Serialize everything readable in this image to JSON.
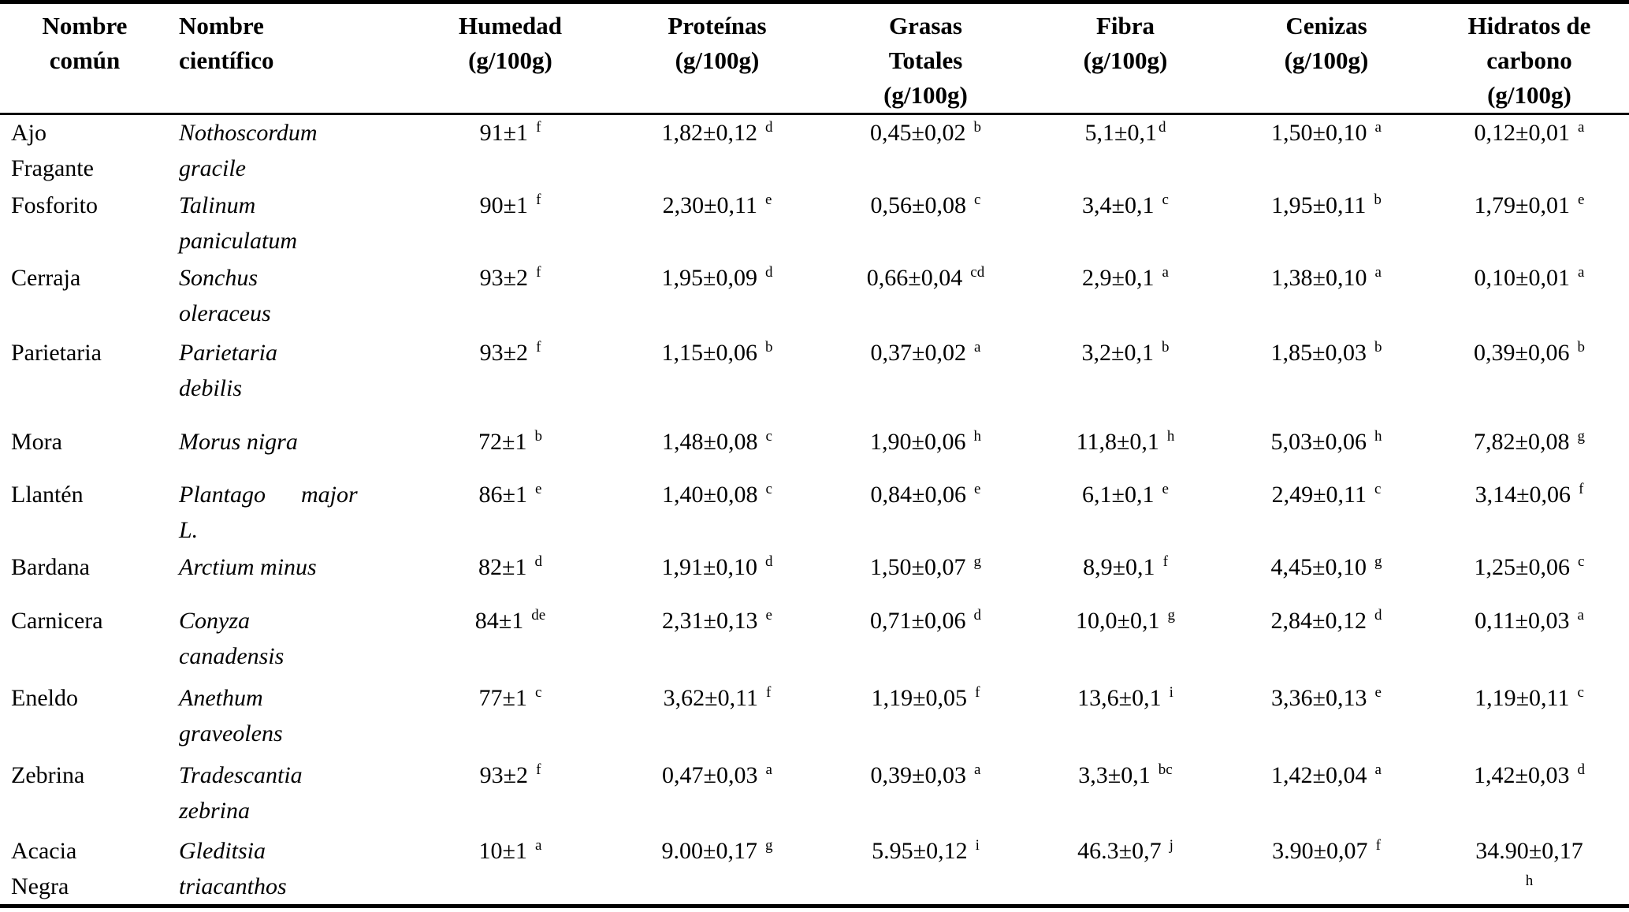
{
  "table": {
    "headers": {
      "comun": "Nombre\ncomún",
      "cientifico": "Nombre\ncientífico",
      "humedad": "Humedad\n(g/100g)",
      "proteinas": "Proteínas\n(g/100g)",
      "grasas": "Grasas\nTotales\n(g/100g)",
      "fibra": "Fibra\n(g/100g)",
      "cenizas": "Cenizas\n(g/100g)",
      "hidratos": "Hidratos de\ncarbono\n(g/100g)"
    },
    "rows": [
      {
        "comun": "Ajo\nFragante",
        "cientifico": "Nothoscordum\ngracile",
        "humedad": {
          "v": "91±1",
          "s": "f"
        },
        "proteinas": {
          "v": "1,82±0,12",
          "s": "d"
        },
        "grasas": {
          "v": "0,45±0,02",
          "s": "b"
        },
        "fibra": {
          "v": "5,1±0,1",
          "s": "d"
        },
        "cenizas": {
          "v": "1,50±0,10",
          "s": "a"
        },
        "hidratos": {
          "v": "0,12±0,01",
          "s": "a"
        }
      },
      {
        "comun": "Fosforito",
        "cientifico": "Talinum\npaniculatum",
        "humedad": {
          "v": "90±1",
          "s": "f"
        },
        "proteinas": {
          "v": "2,30±0,11",
          "s": "e"
        },
        "grasas": {
          "v": "0,56±0,08",
          "s": "c"
        },
        "fibra": {
          "v": "3,4±0,1",
          "s": "c"
        },
        "cenizas": {
          "v": "1,95±0,11",
          "s": "b"
        },
        "hidratos": {
          "v": "1,79±0,01",
          "s": "e"
        }
      },
      {
        "comun": "Cerraja",
        "cientifico": "Sonchus\noleraceus",
        "humedad": {
          "v": "93±2",
          "s": "f"
        },
        "proteinas": {
          "v": "1,95±0,09",
          "s": "d"
        },
        "grasas": {
          "v": "0,66±0,04",
          "s": "cd"
        },
        "fibra": {
          "v": "2,9±0,1",
          "s": "a"
        },
        "cenizas": {
          "v": "1,38±0,10",
          "s": "a"
        },
        "hidratos": {
          "v": "0,10±0,01",
          "s": "a"
        }
      },
      {
        "comun": "Parietaria",
        "cientifico": "Parietaria\ndebilis",
        "humedad": {
          "v": "93±2",
          "s": "f"
        },
        "proteinas": {
          "v": "1,15±0,06",
          "s": "b"
        },
        "grasas": {
          "v": "0,37±0,02",
          "s": "a"
        },
        "fibra": {
          "v": "3,2±0,1",
          "s": "b"
        },
        "cenizas": {
          "v": "1,85±0,03",
          "s": "b"
        },
        "hidratos": {
          "v": "0,39±0,06",
          "s": "b"
        }
      },
      {
        "comun": "Mora",
        "cientifico": "Morus nigra",
        "humedad": {
          "v": "72±1",
          "s": "b"
        },
        "proteinas": {
          "v": "1,48±0,08",
          "s": "c"
        },
        "grasas": {
          "v": "1,90±0,06",
          "s": "h"
        },
        "fibra": {
          "v": "11,8±0,1",
          "s": "h"
        },
        "cenizas": {
          "v": "5,03±0,06",
          "s": "h"
        },
        "hidratos": {
          "v": "7,82±0,08",
          "s": "g"
        }
      },
      {
        "comun": "Llantén",
        "cientifico": "Plantago      major\nL.",
        "humedad": {
          "v": "86±1",
          "s": "e"
        },
        "proteinas": {
          "v": "1,40±0,08",
          "s": "c"
        },
        "grasas": {
          "v": "0,84±0,06",
          "s": "e"
        },
        "fibra": {
          "v": "6,1±0,1",
          "s": "e"
        },
        "cenizas": {
          "v": "2,49±0,11",
          "s": "c"
        },
        "hidratos": {
          "v": "3,14±0,06",
          "s": "f"
        }
      },
      {
        "comun": "Bardana",
        "cientifico": "Arctium minus",
        "humedad": {
          "v": "82±1",
          "s": "d"
        },
        "proteinas": {
          "v": "1,91±0,10",
          "s": "d"
        },
        "grasas": {
          "v": "1,50±0,07",
          "s": "g"
        },
        "fibra": {
          "v": "8,9±0,1",
          "s": "f"
        },
        "cenizas": {
          "v": "4,45±0,10",
          "s": "g"
        },
        "hidratos": {
          "v": "1,25±0,06",
          "s": "c"
        }
      },
      {
        "comun": "Carnicera",
        "cientifico": "Conyza\ncanadensis",
        "humedad": {
          "v": "84±1",
          "s": "de"
        },
        "proteinas": {
          "v": "2,31±0,13",
          "s": "e"
        },
        "grasas": {
          "v": "0,71±0,06",
          "s": "d"
        },
        "fibra": {
          "v": "10,0±0,1",
          "s": "g"
        },
        "cenizas": {
          "v": "2,84±0,12",
          "s": "d"
        },
        "hidratos": {
          "v": "0,11±0,03",
          "s": "a"
        }
      },
      {
        "comun": "Eneldo",
        "cientifico": "Anethum\ngraveolens",
        "humedad": {
          "v": "77±1",
          "s": "c"
        },
        "proteinas": {
          "v": "3,62±0,11",
          "s": "f"
        },
        "grasas": {
          "v": "1,19±0,05",
          "s": "f"
        },
        "fibra": {
          "v": "13,6±0,1",
          "s": "i"
        },
        "cenizas": {
          "v": "3,36±0,13",
          "s": "e"
        },
        "hidratos": {
          "v": "1,19±0,11",
          "s": "c"
        }
      },
      {
        "comun": "Zebrina",
        "cientifico": "Tradescantia\nzebrina",
        "humedad": {
          "v": "93±2",
          "s": "f"
        },
        "proteinas": {
          "v": "0,47±0,03",
          "s": "a"
        },
        "grasas": {
          "v": "0,39±0,03",
          "s": "a"
        },
        "fibra": {
          "v": "3,3±0,1",
          "s": "bc"
        },
        "cenizas": {
          "v": "1,42±0,04",
          "s": "a"
        },
        "hidratos": {
          "v": "1,42±0,03",
          "s": "d"
        }
      },
      {
        "comun": "Acacia\nNegra",
        "cientifico": "Gleditsia\ntriacanthos",
        "humedad": {
          "v": "10±1",
          "s": "a"
        },
        "proteinas": {
          "v": "9.00±0,17",
          "s": "g"
        },
        "grasas": {
          "v": "5.95±0,12",
          "s": "i"
        },
        "fibra": {
          "v": "46.3±0,7",
          "s": "j"
        },
        "cenizas": {
          "v": "3.90±0,07",
          "s": "f"
        },
        "hidratos": {
          "v": "34.90±0,17",
          "s": "h"
        }
      }
    ]
  }
}
